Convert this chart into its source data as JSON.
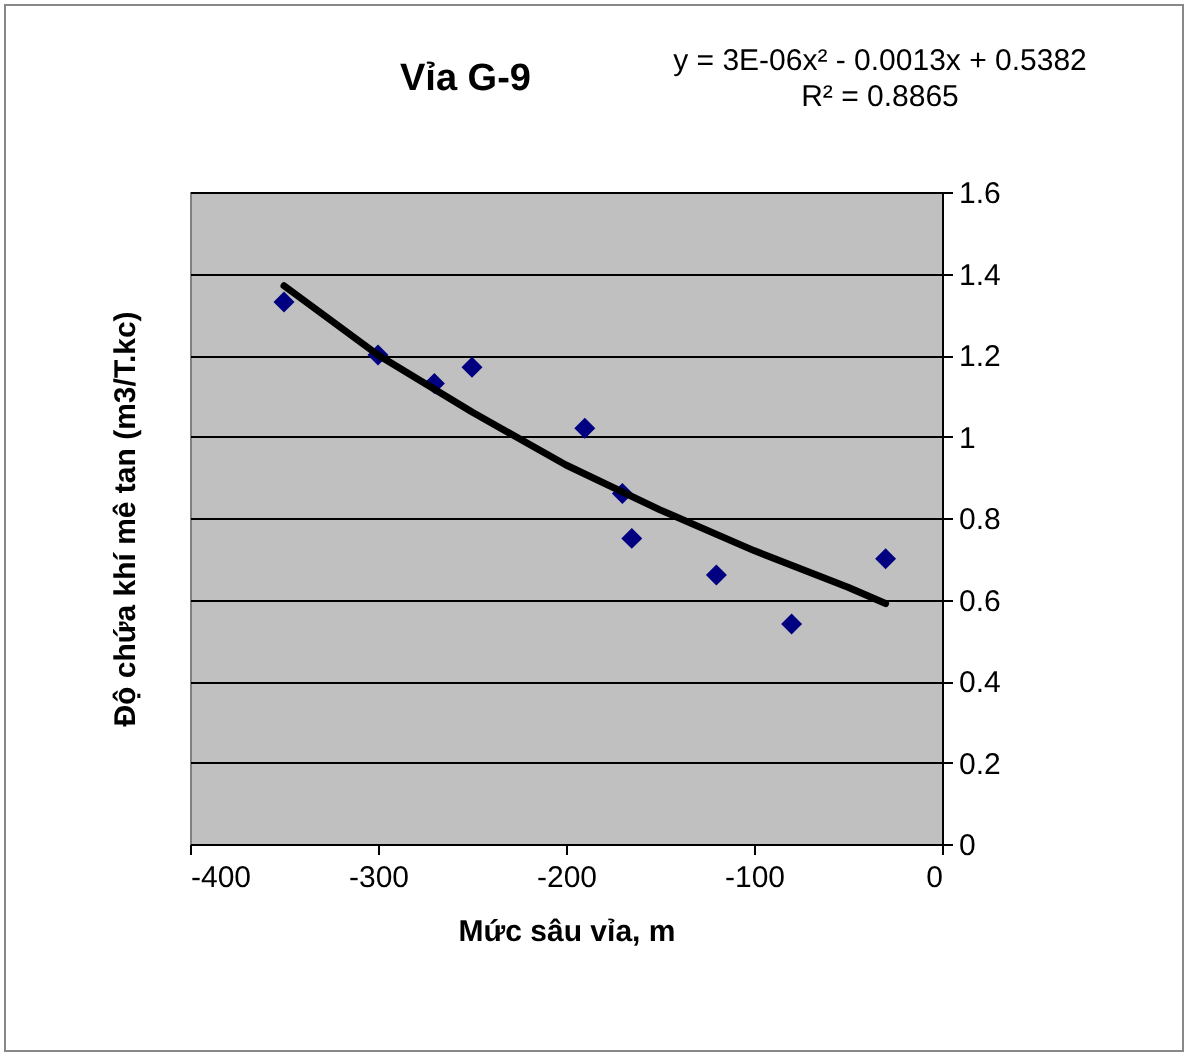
{
  "chart_data": {
    "type": "scatter",
    "title": "Vỉa G-9",
    "xlabel": "Mức sâu vỉa, m",
    "ylabel": "Độ chứa khí mê tan (m3/T.kc)",
    "annotations": [
      "y = 3E-06x² - 0.0013x + 0.5382",
      "R² = 0.8865"
    ],
    "xlim": [
      -400,
      0
    ],
    "xticks": [
      -400,
      -300,
      -200,
      -100,
      0
    ],
    "ylim": [
      0,
      1.6
    ],
    "yticks": [
      0,
      0.2,
      0.4,
      0.6,
      0.8,
      1,
      1.2,
      1.4,
      1.6
    ],
    "grid": "y",
    "series": [
      {
        "marker": "diamond",
        "color": "#000080",
        "x": [
          -350,
          -300,
          -270,
          -250,
          -190,
          -170,
          -165,
          -120,
          -80,
          -30
        ],
        "values": [
          1.33,
          1.2,
          1.13,
          1.17,
          1.02,
          0.86,
          0.75,
          0.66,
          0.54,
          0.7
        ]
      },
      {
        "type": "line",
        "color": "#000000",
        "x": [
          -350,
          -300,
          -250,
          -200,
          -150,
          -100,
          -50,
          -30
        ],
        "values": [
          1.37,
          1.2,
          1.06,
          0.93,
          0.82,
          0.72,
          0.63,
          0.59
        ]
      }
    ]
  }
}
